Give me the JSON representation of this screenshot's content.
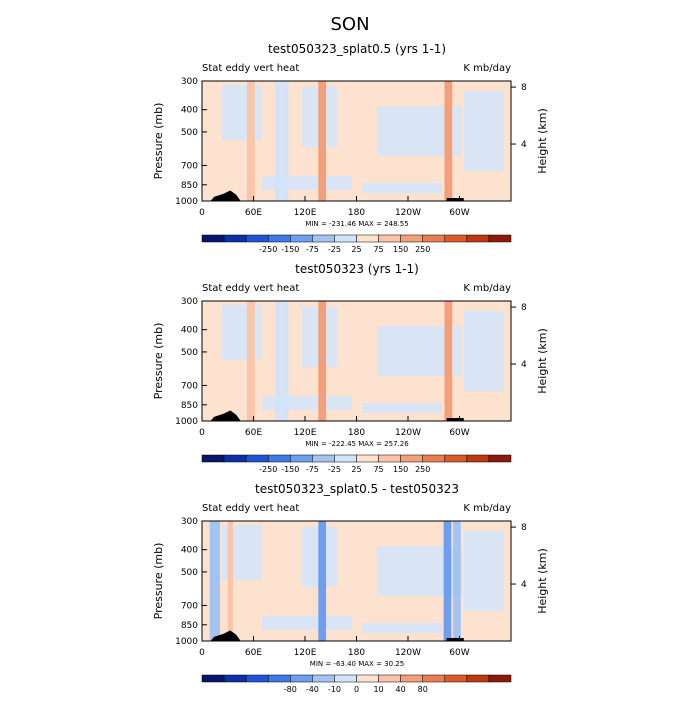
{
  "page_title": "SON",
  "chart_data": [
    {
      "type": "heatmap",
      "title": "test050323_splat0.5 (yrs 1-1)",
      "field_label": "Stat eddy vert heat",
      "units": "K mb/day",
      "ylabel": "Pressure (mb)",
      "ylabel_right": "Height (km)",
      "yticks": [
        "300",
        "400",
        "500",
        "700",
        "850",
        "1000"
      ],
      "yticks_right": [
        "8",
        "4"
      ],
      "xticks": [
        "0",
        "60E",
        "120E",
        "180",
        "120W",
        "60W"
      ],
      "stats": "MIN = -231.46   MAX = 248.55",
      "colorbar_labels": [
        "-250",
        "-150",
        "-75",
        "-25",
        "25",
        "75",
        "150",
        "250"
      ],
      "colorbar_colors": [
        "#08166b",
        "#0c30a8",
        "#1f54d4",
        "#3d7ae6",
        "#6e9eee",
        "#a3c4f3",
        "#d2e4fa",
        "#fde2cf",
        "#f9c4a7",
        "#f3a07a",
        "#ea7d4f",
        "#dc5a28",
        "#c03810",
        "#8c1a08"
      ],
      "background_color": "#fde2cf",
      "features": [
        {
          "lon": 57,
          "width": 3,
          "value": 120
        },
        {
          "lon": 88,
          "width": 2,
          "value": -20
        },
        {
          "lon": 96,
          "width": 3,
          "value": -20
        },
        {
          "lon": 140,
          "width": 3,
          "value": 240
        },
        {
          "lon": 287,
          "width": 3,
          "value": 230
        }
      ],
      "terrain": [
        [
          10,
          1000
        ],
        [
          14,
          960
        ],
        [
          25,
          930
        ],
        [
          33,
          900
        ],
        [
          40,
          940
        ],
        [
          45,
          1000
        ],
        [
          285,
          990
        ],
        [
          305,
          990
        ]
      ]
    },
    {
      "type": "heatmap",
      "title": "test050323 (yrs 1-1)",
      "field_label": "Stat eddy vert heat",
      "units": "K mb/day",
      "ylabel": "Pressure (mb)",
      "ylabel_right": "Height (km)",
      "yticks": [
        "300",
        "400",
        "500",
        "700",
        "850",
        "1000"
      ],
      "yticks_right": [
        "8",
        "4"
      ],
      "xticks": [
        "0",
        "60E",
        "120E",
        "180",
        "120W",
        "60W"
      ],
      "stats": "MIN = -222.45   MAX = 257.26",
      "colorbar_labels": [
        "-250",
        "-150",
        "-75",
        "-25",
        "25",
        "75",
        "150",
        "250"
      ],
      "colorbar_colors": [
        "#08166b",
        "#0c30a8",
        "#1f54d4",
        "#3d7ae6",
        "#6e9eee",
        "#a3c4f3",
        "#d2e4fa",
        "#fde2cf",
        "#f9c4a7",
        "#f3a07a",
        "#ea7d4f",
        "#dc5a28",
        "#c03810",
        "#8c1a08"
      ],
      "background_color": "#fde2cf",
      "features": [
        {
          "lon": 57,
          "width": 3,
          "value": 120
        },
        {
          "lon": 88,
          "width": 2,
          "value": -20
        },
        {
          "lon": 96,
          "width": 3,
          "value": -20
        },
        {
          "lon": 140,
          "width": 3,
          "value": 245
        },
        {
          "lon": 287,
          "width": 3,
          "value": 235
        }
      ],
      "terrain": [
        [
          10,
          1000
        ],
        [
          14,
          960
        ],
        [
          25,
          930
        ],
        [
          33,
          900
        ],
        [
          40,
          940
        ],
        [
          45,
          1000
        ],
        [
          285,
          990
        ],
        [
          305,
          990
        ]
      ]
    },
    {
      "type": "heatmap",
      "title": "test050323_splat0.5 - test050323",
      "field_label": "Stat eddy vert heat",
      "units": "K mb/day",
      "ylabel": "Pressure (mb)",
      "ylabel_right": "Height (km)",
      "yticks": [
        "300",
        "400",
        "500",
        "700",
        "850",
        "1000"
      ],
      "yticks_right": [
        "8",
        "4"
      ],
      "xticks": [
        "0",
        "60E",
        "120E",
        "180",
        "120W",
        "60W"
      ],
      "stats": "MIN = -63.40   MAX =  30.25",
      "colorbar_labels": [
        "-80",
        "-40",
        "-10",
        "0",
        "10",
        "40",
        "80"
      ],
      "colorbar_colors": [
        "#08166b",
        "#0c30a8",
        "#1f54d4",
        "#3d7ae6",
        "#6e9eee",
        "#a3c4f3",
        "#d2e4fa",
        "#fde2cf",
        "#f9c4a7",
        "#f3a07a",
        "#ea7d4f",
        "#dc5a28",
        "#c03810",
        "#8c1a08"
      ],
      "background_color": "#fde2cf",
      "features": [
        {
          "lon": 15,
          "width": 4,
          "value": -15
        },
        {
          "lon": 33,
          "width": 2,
          "value": 30
        },
        {
          "lon": 140,
          "width": 3,
          "value": -60
        },
        {
          "lon": 286,
          "width": 3,
          "value": -55
        },
        {
          "lon": 297,
          "width": 3,
          "value": -20
        }
      ],
      "terrain": [
        [
          10,
          1000
        ],
        [
          14,
          960
        ],
        [
          25,
          930
        ],
        [
          33,
          900
        ],
        [
          40,
          940
        ],
        [
          45,
          1000
        ],
        [
          285,
          990
        ],
        [
          305,
          990
        ]
      ]
    }
  ]
}
